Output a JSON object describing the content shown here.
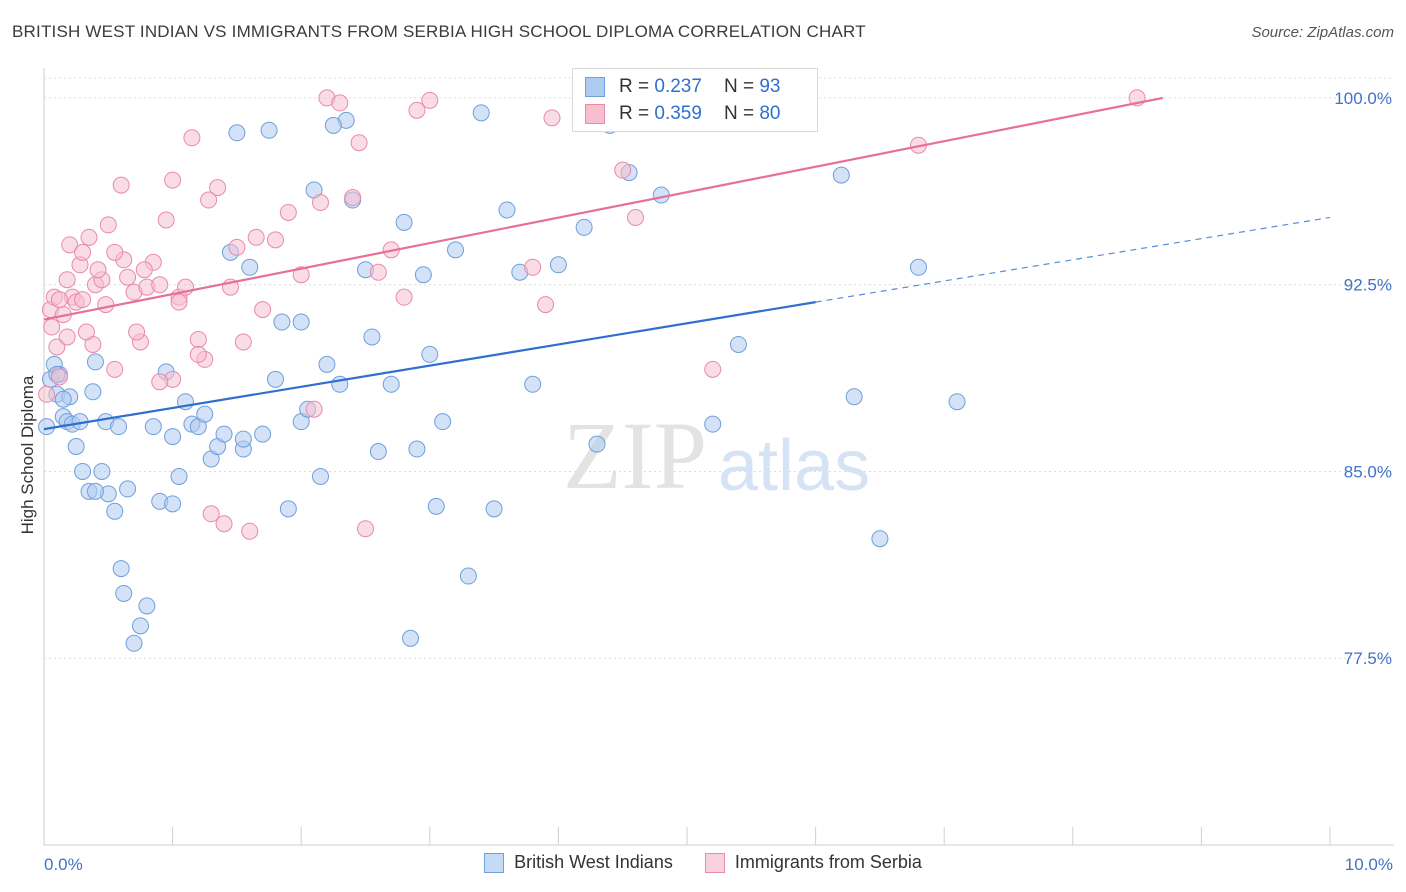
{
  "title": "BRITISH WEST INDIAN VS IMMIGRANTS FROM SERBIA HIGH SCHOOL DIPLOMA CORRELATION CHART",
  "source": "Source: ZipAtlas.com",
  "watermark": {
    "zip": "ZIP",
    "atlas": "atlas"
  },
  "colors": {
    "blue_fill": "#aecbf0",
    "blue_stroke": "#6f9fdc",
    "blue_line": "#2f6fcf",
    "pink_fill": "#f6bfd0",
    "pink_stroke": "#e98aa9",
    "pink_line": "#e5709a",
    "tick_text": "#3f73c9",
    "grid": "#dcdcdc"
  },
  "legend_top": {
    "rows": [
      {
        "r_label": "R =",
        "r_value": "0.237",
        "n_label": "N =",
        "n_value": "93"
      },
      {
        "r_label": "R =",
        "r_value": "0.359",
        "n_label": "N =",
        "n_value": "80"
      }
    ]
  },
  "chart_data": {
    "type": "scatter",
    "title": "BRITISH WEST INDIAN VS IMMIGRANTS FROM SERBIA HIGH SCHOOL DIPLOMA CORRELATION CHART",
    "xlabel": "",
    "ylabel": "High School Diploma",
    "xlim": [
      0,
      10
    ],
    "ylim": [
      70,
      100.8
    ],
    "x_tick_labels": [
      "0.0%",
      "10.0%"
    ],
    "y_ticks": [
      77.5,
      85.0,
      92.5,
      100.0
    ],
    "y_tick_labels": [
      "77.5%",
      "85.0%",
      "92.5%",
      "100.0%"
    ],
    "grid": true,
    "legend": "bottom-center",
    "series": [
      {
        "name": "British West Indians",
        "r": 0.237,
        "n": 93,
        "trend": {
          "x": [
            0,
            6.0
          ],
          "y": [
            86.7,
            91.8
          ],
          "dashed_to": [
            10.0,
            95.2
          ]
        },
        "points": [
          [
            0.02,
            86.8
          ],
          [
            0.05,
            88.7
          ],
          [
            0.08,
            89.3
          ],
          [
            0.1,
            88.1
          ],
          [
            0.12,
            88.9
          ],
          [
            0.15,
            87.2
          ],
          [
            0.18,
            87.0
          ],
          [
            0.2,
            88.0
          ],
          [
            0.22,
            86.9
          ],
          [
            0.25,
            86.0
          ],
          [
            0.28,
            87.0
          ],
          [
            0.3,
            85.0
          ],
          [
            0.35,
            84.2
          ],
          [
            0.38,
            88.2
          ],
          [
            0.4,
            89.4
          ],
          [
            0.45,
            85.0
          ],
          [
            0.48,
            87.0
          ],
          [
            0.5,
            84.1
          ],
          [
            0.55,
            83.4
          ],
          [
            0.6,
            81.1
          ],
          [
            0.62,
            80.1
          ],
          [
            0.65,
            84.3
          ],
          [
            0.7,
            78.1
          ],
          [
            0.75,
            78.8
          ],
          [
            0.8,
            79.6
          ],
          [
            0.85,
            86.8
          ],
          [
            0.9,
            83.8
          ],
          [
            0.95,
            89.0
          ],
          [
            1.0,
            83.7
          ],
          [
            1.05,
            84.8
          ],
          [
            1.1,
            87.8
          ],
          [
            1.15,
            86.9
          ],
          [
            1.2,
            86.8
          ],
          [
            1.25,
            87.3
          ],
          [
            1.3,
            85.5
          ],
          [
            1.35,
            86.0
          ],
          [
            1.4,
            86.5
          ],
          [
            1.45,
            93.8
          ],
          [
            1.5,
            98.6
          ],
          [
            1.55,
            85.9
          ],
          [
            1.6,
            93.2
          ],
          [
            1.7,
            86.5
          ],
          [
            1.75,
            98.7
          ],
          [
            1.8,
            88.7
          ],
          [
            1.85,
            91.0
          ],
          [
            1.9,
            83.5
          ],
          [
            2.0,
            87.0
          ],
          [
            2.05,
            87.5
          ],
          [
            2.1,
            96.3
          ],
          [
            2.15,
            84.8
          ],
          [
            2.2,
            89.3
          ],
          [
            2.3,
            88.5
          ],
          [
            2.35,
            99.1
          ],
          [
            2.4,
            95.9
          ],
          [
            2.5,
            93.1
          ],
          [
            2.55,
            90.4
          ],
          [
            2.6,
            85.8
          ],
          [
            2.7,
            88.5
          ],
          [
            2.8,
            95.0
          ],
          [
            2.85,
            78.3
          ],
          [
            2.9,
            85.9
          ],
          [
            2.95,
            92.9
          ],
          [
            3.0,
            89.7
          ],
          [
            3.05,
            83.6
          ],
          [
            3.1,
            87.0
          ],
          [
            3.2,
            93.9
          ],
          [
            3.3,
            80.8
          ],
          [
            3.4,
            99.4
          ],
          [
            3.5,
            83.5
          ],
          [
            3.6,
            95.5
          ],
          [
            3.7,
            93.0
          ],
          [
            3.8,
            88.5
          ],
          [
            4.2,
            94.8
          ],
          [
            4.3,
            86.1
          ],
          [
            4.4,
            98.9
          ],
          [
            4.55,
            97.0
          ],
          [
            4.8,
            96.1
          ],
          [
            5.4,
            90.1
          ],
          [
            6.2,
            96.9
          ],
          [
            6.3,
            88.0
          ],
          [
            6.5,
            82.3
          ],
          [
            6.8,
            93.2
          ],
          [
            7.1,
            87.8
          ],
          [
            1.0,
            86.4
          ],
          [
            2.25,
            98.9
          ],
          [
            0.4,
            84.2
          ],
          [
            1.55,
            86.3
          ],
          [
            2.0,
            91.0
          ],
          [
            0.58,
            86.8
          ],
          [
            4.0,
            93.3
          ],
          [
            5.2,
            86.9
          ],
          [
            0.1,
            88.9
          ],
          [
            0.15,
            87.9
          ]
        ]
      },
      {
        "name": "Immigrants from Serbia",
        "r": 0.359,
        "n": 80,
        "trend": {
          "x": [
            0,
            8.7
          ],
          "y": [
            91.1,
            100.0
          ]
        },
        "points": [
          [
            0.05,
            91.5
          ],
          [
            0.08,
            92.0
          ],
          [
            0.1,
            90.0
          ],
          [
            0.12,
            88.8
          ],
          [
            0.15,
            91.3
          ],
          [
            0.18,
            92.7
          ],
          [
            0.2,
            94.1
          ],
          [
            0.22,
            92.0
          ],
          [
            0.25,
            91.8
          ],
          [
            0.28,
            93.3
          ],
          [
            0.3,
            93.8
          ],
          [
            0.35,
            94.4
          ],
          [
            0.38,
            90.1
          ],
          [
            0.4,
            92.5
          ],
          [
            0.45,
            92.7
          ],
          [
            0.48,
            91.7
          ],
          [
            0.5,
            94.9
          ],
          [
            0.55,
            89.1
          ],
          [
            0.6,
            96.5
          ],
          [
            0.62,
            93.5
          ],
          [
            0.65,
            92.8
          ],
          [
            0.7,
            92.2
          ],
          [
            0.75,
            90.2
          ],
          [
            0.8,
            92.4
          ],
          [
            0.85,
            93.4
          ],
          [
            0.9,
            92.5
          ],
          [
            0.95,
            95.1
          ],
          [
            1.0,
            88.7
          ],
          [
            1.05,
            92.0
          ],
          [
            1.1,
            92.4
          ],
          [
            1.15,
            98.4
          ],
          [
            1.2,
            90.3
          ],
          [
            1.25,
            89.5
          ],
          [
            1.3,
            83.3
          ],
          [
            1.35,
            96.4
          ],
          [
            1.4,
            82.9
          ],
          [
            1.45,
            92.4
          ],
          [
            1.5,
            94.0
          ],
          [
            1.6,
            82.6
          ],
          [
            1.7,
            91.5
          ],
          [
            1.8,
            94.3
          ],
          [
            1.9,
            95.4
          ],
          [
            2.0,
            92.9
          ],
          [
            2.1,
            87.5
          ],
          [
            2.2,
            100.0
          ],
          [
            2.3,
            99.8
          ],
          [
            2.4,
            96.0
          ],
          [
            2.45,
            98.2
          ],
          [
            2.5,
            82.7
          ],
          [
            2.6,
            93.0
          ],
          [
            2.7,
            93.9
          ],
          [
            2.8,
            92.0
          ],
          [
            2.9,
            99.5
          ],
          [
            3.0,
            99.9
          ],
          [
            3.8,
            93.2
          ],
          [
            3.9,
            91.7
          ],
          [
            3.95,
            99.2
          ],
          [
            4.5,
            97.1
          ],
          [
            4.6,
            95.2
          ],
          [
            5.2,
            89.1
          ],
          [
            6.8,
            98.1
          ],
          [
            8.5,
            100.0
          ],
          [
            0.02,
            88.1
          ],
          [
            0.06,
            90.8
          ],
          [
            0.3,
            91.9
          ],
          [
            0.42,
            93.1
          ],
          [
            1.0,
            96.7
          ],
          [
            1.2,
            89.7
          ],
          [
            1.55,
            90.2
          ],
          [
            0.12,
            91.9
          ],
          [
            0.72,
            90.6
          ],
          [
            0.9,
            88.6
          ],
          [
            1.28,
            95.9
          ],
          [
            1.65,
            94.4
          ],
          [
            0.33,
            90.6
          ],
          [
            0.55,
            93.8
          ],
          [
            0.78,
            93.1
          ],
          [
            1.05,
            91.8
          ],
          [
            2.15,
            95.8
          ],
          [
            0.18,
            90.4
          ]
        ]
      }
    ]
  }
}
